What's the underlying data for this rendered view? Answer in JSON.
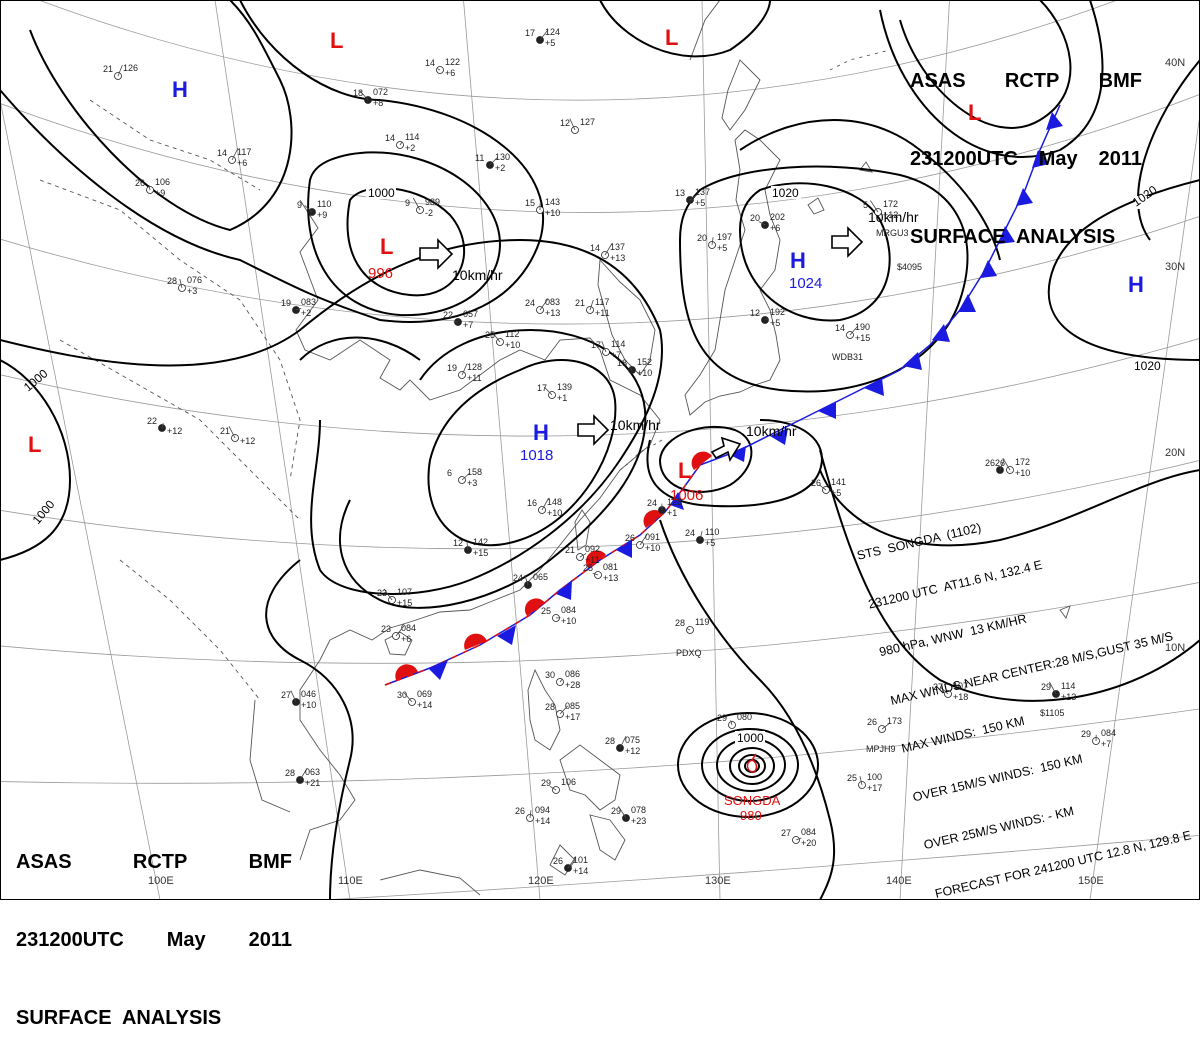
{
  "header": {
    "line1": [
      "ASAS",
      "RCTP",
      "BMF"
    ],
    "line2": [
      "231200UTC",
      "May",
      "2011"
    ],
    "line3": "SURFACE  ANALYSIS"
  },
  "lat_labels": [
    "40N",
    "30N",
    "20N",
    "10N"
  ],
  "lon_labels": [
    "100E",
    "110E",
    "120E",
    "130E",
    "140E",
    "150E"
  ],
  "pressure_centers": [
    {
      "type": "L",
      "value": "996",
      "color": "#e01010"
    },
    {
      "type": "H",
      "value": "1018",
      "color": "#1a1ae0"
    },
    {
      "type": "H",
      "value": "1024",
      "color": "#1a1ae0"
    },
    {
      "type": "L",
      "value": "1006",
      "color": "#e01010"
    },
    {
      "type": "H",
      "value": "",
      "color": "#1a1ae0"
    },
    {
      "type": "H",
      "value": "",
      "color": "#1a1ae0"
    },
    {
      "type": "L",
      "value": "",
      "color": "#e01010"
    },
    {
      "type": "L",
      "value": "",
      "color": "#e01010"
    },
    {
      "type": "L",
      "value": "",
      "color": "#e01010"
    },
    {
      "type": "L",
      "value": "",
      "color": "#e01010"
    }
  ],
  "isobar_labels": [
    "1000",
    "1020",
    "1020",
    "1020",
    "1000",
    "1000",
    "1000"
  ],
  "motion_labels": [
    "10km/hr",
    "10km/hr",
    "10km/hr",
    "10km/hr"
  ],
  "typhoon": {
    "name": "SONGDA",
    "pressure": "980",
    "isobar": "1000",
    "color": "#e01010"
  },
  "storm_info": [
    "STS  SONGDA  (1102)",
    "231200 UTC  AT11.6 N, 132.4 E",
    "980 hPa, WNW  13 KM/HR",
    "MAX WINDS NEAR CENTER:28 M/S,GUST 35 M/S",
    "MAX WINDS:  150 KM",
    "OVER 15M/S WINDS:  150 KM",
    "OVER 25M/S WINDS: - KM",
    "FORECAST FOR 241200 UTC 12.8 N, 129.8 E"
  ],
  "stations": [
    {
      "t": "17",
      "p": "124",
      "d": "+5"
    },
    {
      "t": "21",
      "p": "126",
      "d": ""
    },
    {
      "t": "14",
      "p": "122",
      "d": "+6"
    },
    {
      "t": "18",
      "p": "072",
      "d": "+8"
    },
    {
      "t": "12",
      "p": "127",
      "d": ""
    },
    {
      "t": "14",
      "p": "114",
      "d": "+2"
    },
    {
      "t": "11",
      "p": "130",
      "d": "+2"
    },
    {
      "t": "14",
      "p": "117",
      "d": "+6"
    },
    {
      "t": "26",
      "p": "106",
      "d": "+9"
    },
    {
      "t": "9",
      "p": "110",
      "d": "+9"
    },
    {
      "t": "9",
      "p": "989",
      "d": "-2"
    },
    {
      "t": "15",
      "p": "143",
      "d": "+10"
    },
    {
      "t": "13",
      "p": "137",
      "d": "+5"
    },
    {
      "t": "14",
      "p": "137",
      "d": "+13"
    },
    {
      "t": "20",
      "p": "197",
      "d": "+5"
    },
    {
      "t": "20",
      "p": "202",
      "d": "+6"
    },
    {
      "t": "5",
      "p": "172",
      "d": "+12"
    },
    {
      "t": "28",
      "p": "076",
      "d": "+3"
    },
    {
      "t": "19",
      "p": "083",
      "d": "+2"
    },
    {
      "t": "24",
      "p": "083",
      "d": "+13"
    },
    {
      "t": "21",
      "p": "117",
      "d": "+11"
    },
    {
      "t": "22",
      "p": "057",
      "d": "+7"
    },
    {
      "t": "25",
      "p": "112",
      "d": "+10"
    },
    {
      "t": "17",
      "p": "114",
      "d": "+7"
    },
    {
      "t": "12",
      "p": "192",
      "d": "+5"
    },
    {
      "t": "14",
      "p": "190",
      "d": "+15"
    },
    {
      "t": "19",
      "p": "128",
      "d": "+11"
    },
    {
      "t": "18",
      "p": "152",
      "d": "+10"
    },
    {
      "t": "17",
      "p": "139",
      "d": "+1"
    },
    {
      "t": "21",
      "p": "",
      "d": "+12"
    },
    {
      "t": "22",
      "p": "",
      "d": "+12"
    },
    {
      "t": "6",
      "p": "158",
      "d": "+3"
    },
    {
      "t": "16",
      "p": "148",
      "d": "+10"
    },
    {
      "t": "24",
      "p": "128",
      "d": "+1"
    },
    {
      "t": "26",
      "p": "141",
      "d": "+5"
    },
    {
      "t": "26",
      "p": "172",
      "d": "+10"
    },
    {
      "t": "12",
      "p": "142",
      "d": "+15"
    },
    {
      "t": "21",
      "p": "092",
      "d": "+11"
    },
    {
      "t": "26",
      "p": "091",
      "d": "+10"
    },
    {
      "t": "24",
      "p": "110",
      "d": "+5"
    },
    {
      "t": "25",
      "p": "081",
      "d": "+13"
    },
    {
      "t": "23",
      "p": "107",
      "d": "+15"
    },
    {
      "t": "24",
      "p": "065",
      "d": ""
    },
    {
      "t": "25",
      "p": "084",
      "d": "+10"
    },
    {
      "t": "23",
      "p": "084",
      "d": "+6"
    },
    {
      "t": "26",
      "p": "",
      "d": ""
    },
    {
      "t": "28",
      "p": "119",
      "d": ""
    },
    {
      "t": "30",
      "p": "069",
      "d": "+14"
    },
    {
      "t": "27",
      "p": "046",
      "d": "+10"
    },
    {
      "t": "30",
      "p": "086",
      "d": "+28"
    },
    {
      "t": "28",
      "p": "085",
      "d": "+17"
    },
    {
      "t": "28",
      "p": "075",
      "d": "+12"
    },
    {
      "t": "29",
      "p": "080",
      "d": ""
    },
    {
      "t": "27",
      "p": "107",
      "d": "+18"
    },
    {
      "t": "29",
      "p": "114",
      "d": "+13"
    },
    {
      "t": "29",
      "p": "084",
      "d": "+7"
    },
    {
      "t": "26",
      "p": "173",
      "d": ""
    },
    {
      "t": "28",
      "p": "063",
      "d": "+21"
    },
    {
      "t": "26",
      "p": "094",
      "d": "+14"
    },
    {
      "t": "29",
      "p": "106",
      "d": ""
    },
    {
      "t": "29",
      "p": "078",
      "d": "+23"
    },
    {
      "t": "25",
      "p": "100",
      "d": "+17"
    },
    {
      "t": "27",
      "p": "084",
      "d": "+20"
    },
    {
      "t": "26",
      "p": "101",
      "d": "+14"
    }
  ],
  "station_ids": [
    "PDXQ",
    "MPJH9",
    "$1105",
    "$4095",
    "MRGU3",
    "WDB31"
  ]
}
